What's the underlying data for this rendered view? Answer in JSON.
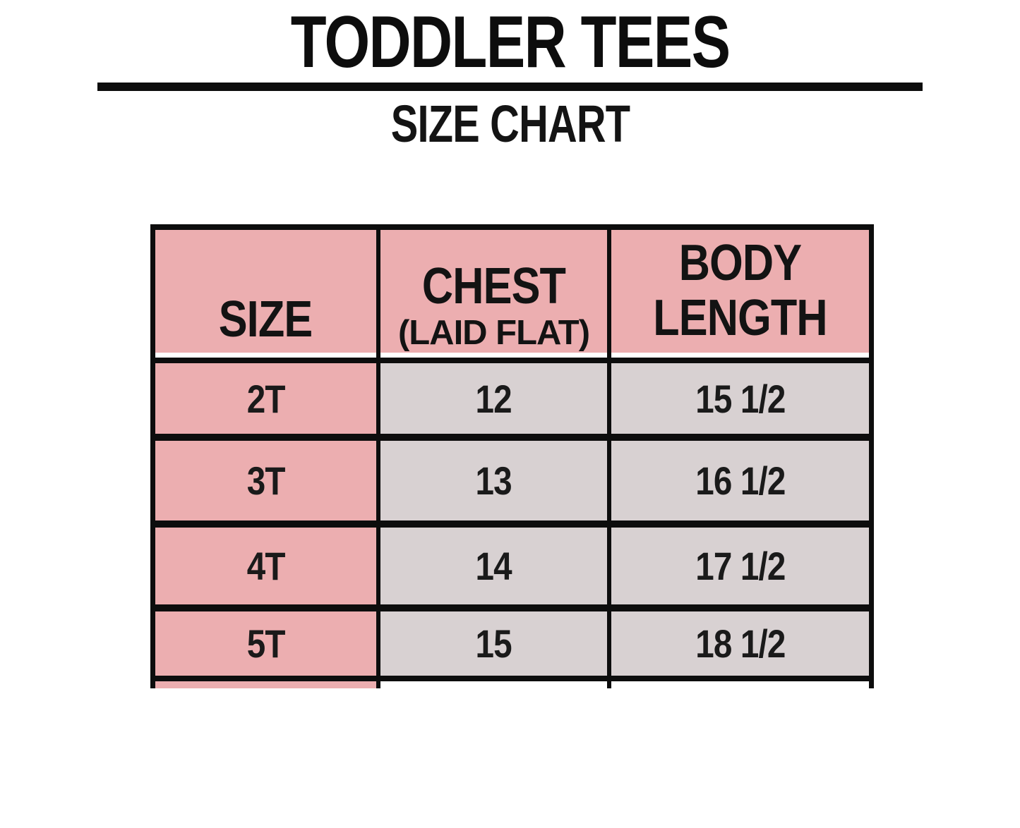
{
  "chart_data": {
    "type": "table",
    "title": "TODDLER TEES",
    "subtitle": "SIZE CHART",
    "columns": [
      {
        "label": "SIZE"
      },
      {
        "label": "CHEST",
        "sublabel": "(LAID FLAT)"
      },
      {
        "label": "BODY LENGTH"
      }
    ],
    "rows": [
      [
        "2T",
        "12",
        "15 1/2"
      ],
      [
        "3T",
        "13",
        "16 1/2"
      ],
      [
        "4T",
        "14",
        "17 1/2"
      ],
      [
        "5T",
        "15",
        "18 1/2"
      ]
    ]
  },
  "colors": {
    "page_bg": "#ffffff",
    "header_bg": "#ecaeb0",
    "row_label_bg": "#ecaeb0",
    "data_cell_bg": "#d8d1d2",
    "border": "#0d0d0d",
    "text": "#131313"
  }
}
